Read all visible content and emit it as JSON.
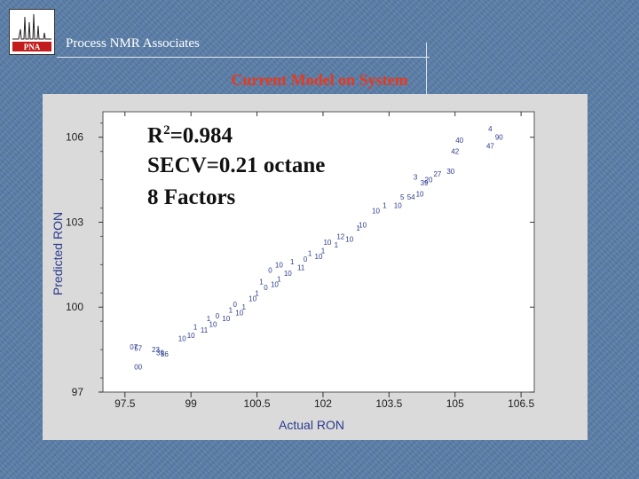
{
  "header": {
    "org_name": "Process NMR Associates",
    "logo_text": "PNA"
  },
  "slide_title": "Current Model on System",
  "annotations": {
    "r2_prefix": "R",
    "r2_sup": "2",
    "r2_value": "=0.984",
    "secv": "SECV=0.21 octane",
    "factors": "8 Factors"
  },
  "colors": {
    "points": "#2a3a8c",
    "title": "#e8391c",
    "axis_text": "#2a3a8c"
  },
  "chart_data": {
    "type": "scatter",
    "title": "",
    "xlabel": "Actual RON",
    "ylabel": "Predicted RON",
    "xlim": [
      97,
      106.8
    ],
    "ylim": [
      97,
      106.9
    ],
    "xticks": [
      "97.5",
      "99",
      "100.5",
      "102",
      "103.5",
      "105",
      "106.5"
    ],
    "yticks": [
      "106",
      "103",
      "100",
      "97"
    ],
    "series": [
      {
        "points": [
          {
            "x": 97.8,
            "y": 97.9,
            "label": "00"
          },
          {
            "x": 97.7,
            "y": 98.6,
            "label": "07"
          },
          {
            "x": 97.8,
            "y": 98.55,
            "label": "57"
          },
          {
            "x": 98.2,
            "y": 98.5,
            "label": "23"
          },
          {
            "x": 98.3,
            "y": 98.4,
            "label": "39"
          },
          {
            "x": 98.4,
            "y": 98.35,
            "label": "56"
          },
          {
            "x": 98.8,
            "y": 98.9,
            "label": "10"
          },
          {
            "x": 99.0,
            "y": 99.0,
            "label": "10"
          },
          {
            "x": 99.1,
            "y": 99.3,
            "label": "1"
          },
          {
            "x": 99.3,
            "y": 99.2,
            "label": "11"
          },
          {
            "x": 99.5,
            "y": 99.4,
            "label": "10"
          },
          {
            "x": 99.4,
            "y": 99.6,
            "label": "1"
          },
          {
            "x": 99.6,
            "y": 99.7,
            "label": "0"
          },
          {
            "x": 99.8,
            "y": 99.6,
            "label": "10"
          },
          {
            "x": 99.9,
            "y": 99.9,
            "label": "1"
          },
          {
            "x": 100.1,
            "y": 99.8,
            "label": "10"
          },
          {
            "x": 100.0,
            "y": 100.1,
            "label": "0"
          },
          {
            "x": 100.2,
            "y": 100.0,
            "label": "1"
          },
          {
            "x": 100.4,
            "y": 100.3,
            "label": "10"
          },
          {
            "x": 100.5,
            "y": 100.5,
            "label": "1"
          },
          {
            "x": 100.7,
            "y": 100.7,
            "label": "0"
          },
          {
            "x": 100.6,
            "y": 100.9,
            "label": "1"
          },
          {
            "x": 100.9,
            "y": 100.8,
            "label": "10"
          },
          {
            "x": 101.0,
            "y": 101.0,
            "label": "1"
          },
          {
            "x": 100.8,
            "y": 101.3,
            "label": "0"
          },
          {
            "x": 101.2,
            "y": 101.2,
            "label": "10"
          },
          {
            "x": 101.0,
            "y": 101.5,
            "label": "10"
          },
          {
            "x": 101.3,
            "y": 101.6,
            "label": "1"
          },
          {
            "x": 101.5,
            "y": 101.4,
            "label": "11"
          },
          {
            "x": 101.6,
            "y": 101.7,
            "label": "0"
          },
          {
            "x": 101.7,
            "y": 101.9,
            "label": "1"
          },
          {
            "x": 101.9,
            "y": 101.8,
            "label": "10"
          },
          {
            "x": 102.0,
            "y": 102.0,
            "label": "1"
          },
          {
            "x": 102.1,
            "y": 102.3,
            "label": "10"
          },
          {
            "x": 102.3,
            "y": 102.2,
            "label": "1"
          },
          {
            "x": 102.4,
            "y": 102.5,
            "label": "12"
          },
          {
            "x": 102.6,
            "y": 102.4,
            "label": "10"
          },
          {
            "x": 102.8,
            "y": 102.8,
            "label": "1"
          },
          {
            "x": 102.9,
            "y": 102.9,
            "label": "10"
          },
          {
            "x": 103.2,
            "y": 103.4,
            "label": "10"
          },
          {
            "x": 103.4,
            "y": 103.6,
            "label": "1"
          },
          {
            "x": 103.7,
            "y": 103.6,
            "label": "10"
          },
          {
            "x": 103.8,
            "y": 103.9,
            "label": "5"
          },
          {
            "x": 104.0,
            "y": 103.9,
            "label": "54"
          },
          {
            "x": 104.2,
            "y": 104.0,
            "label": "10"
          },
          {
            "x": 104.3,
            "y": 104.4,
            "label": "39"
          },
          {
            "x": 104.1,
            "y": 104.6,
            "label": "3"
          },
          {
            "x": 104.4,
            "y": 104.5,
            "label": "20"
          },
          {
            "x": 104.6,
            "y": 104.7,
            "label": "27"
          },
          {
            "x": 104.9,
            "y": 104.8,
            "label": "30"
          },
          {
            "x": 105.0,
            "y": 105.5,
            "label": "42"
          },
          {
            "x": 105.1,
            "y": 105.9,
            "label": "40"
          },
          {
            "x": 105.8,
            "y": 105.7,
            "label": "47"
          },
          {
            "x": 106.0,
            "y": 106.0,
            "label": "90"
          },
          {
            "x": 105.8,
            "y": 106.3,
            "label": "4"
          }
        ]
      }
    ]
  }
}
